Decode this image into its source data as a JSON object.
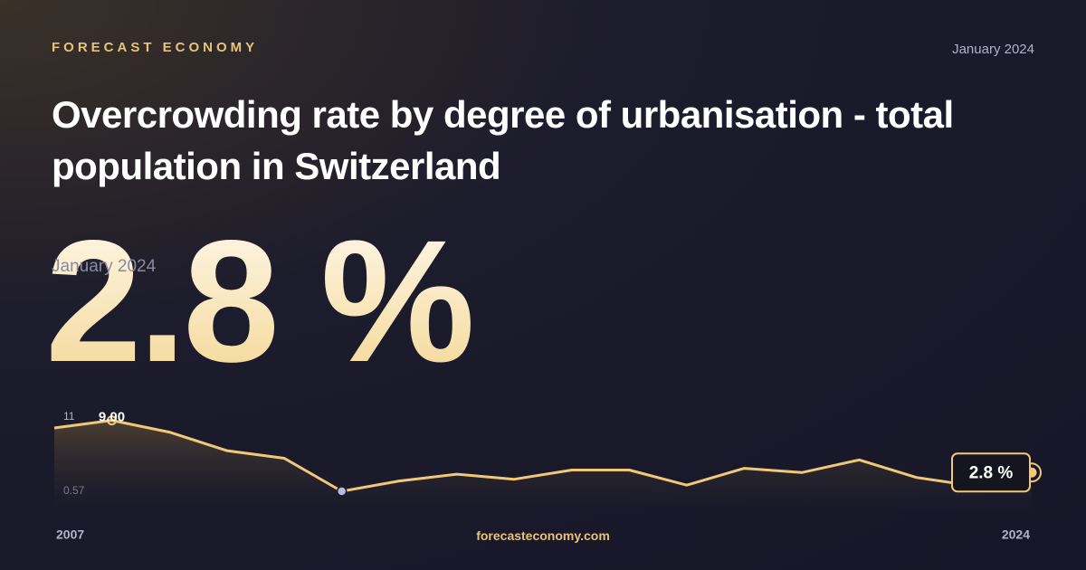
{
  "chart_data": {
    "type": "line",
    "brand": "FORECAST ECONOMY",
    "date": "January 2024",
    "title": "Overcrowding rate by degree of urbanisation - total population in Switzerland",
    "headline_value": "2.8 %",
    "website": "forecasteconomy.com",
    "categories": [
      "2007",
      null,
      null,
      null,
      null,
      null,
      null,
      null,
      null,
      null,
      null,
      null,
      null,
      null,
      null,
      null,
      null,
      "2024"
    ],
    "series": [
      {
        "color": "#f0c878",
        "values": [
          8.1,
          9.0,
          7.6,
          5.4,
          4.5,
          0.57,
          1.8,
          2.6,
          2.0,
          3.1,
          3.1,
          1.3,
          3.3,
          2.8,
          4.3,
          2.2,
          1.2,
          2.8
        ],
        "value_labels": [
          null,
          "9.00",
          null,
          null,
          null,
          null,
          null,
          null,
          null,
          null,
          null,
          null,
          null,
          null,
          null,
          null,
          null,
          "2.8 %"
        ]
      }
    ],
    "ylim": [
      0.57,
      11
    ],
    "yticks": [
      0.57,
      11
    ]
  }
}
